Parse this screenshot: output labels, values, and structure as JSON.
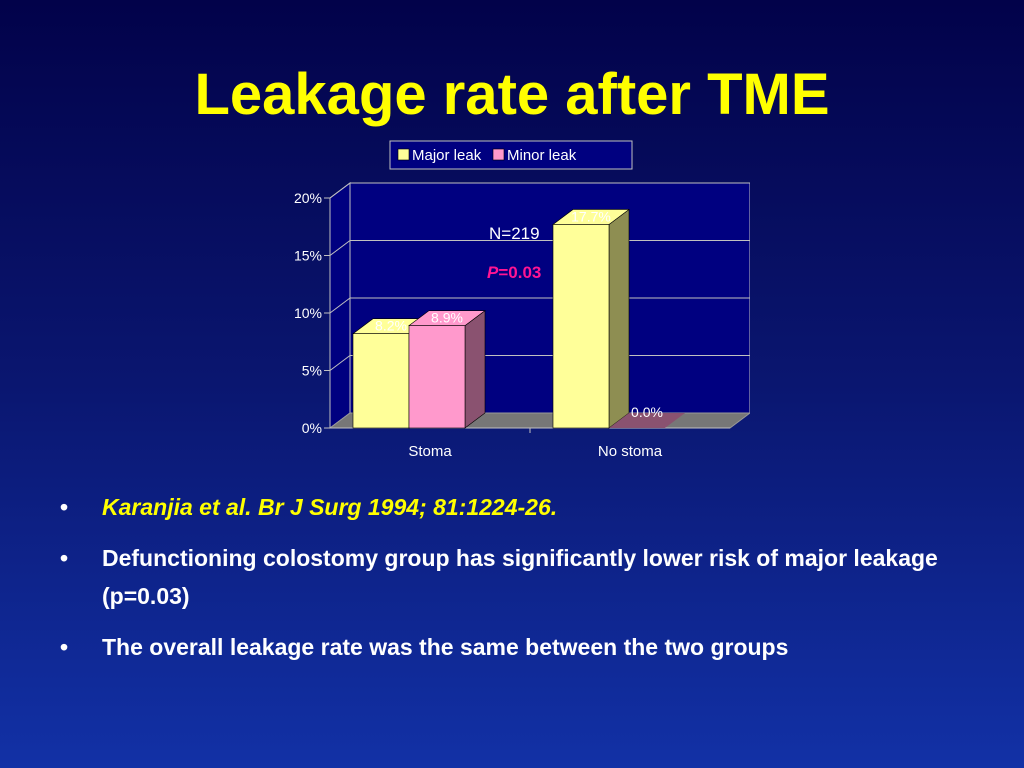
{
  "slide": {
    "title": "Leakage rate after TME"
  },
  "chart_data": {
    "type": "bar",
    "categories": [
      "Stoma",
      "No stoma"
    ],
    "series": [
      {
        "name": "Major leak",
        "values": [
          8.2,
          17.7
        ],
        "labels": [
          "8.2%",
          "17.7%"
        ],
        "color": "#ffff99",
        "side_color": "#8e8e52"
      },
      {
        "name": "Minor leak",
        "values": [
          8.9,
          0.0
        ],
        "labels": [
          "8.9%",
          "0.0%"
        ],
        "color": "#ff99cc",
        "side_color": "#8a5270"
      }
    ],
    "yticks": [
      "0%",
      "5%",
      "10%",
      "15%",
      "20%"
    ],
    "ylim": [
      0,
      20
    ],
    "grid": true,
    "legend_position": "top",
    "annotations": {
      "n": "N=219",
      "p_italic": "P",
      "p_rest": "=0.03"
    },
    "colors": {
      "plot_bg": "#000080",
      "floor": "#777777",
      "grid": "#c0c0c0",
      "p_color": "#ff1493"
    }
  },
  "bullets": [
    "Karanjia et al. Br J Surg 1994; 81:1224-26.",
    "Defunctioning colostomy group has significantly lower risk of major leakage (p=0.03)",
    "The overall leakage rate was the same between the two groups"
  ],
  "bullet_symbol": "•"
}
